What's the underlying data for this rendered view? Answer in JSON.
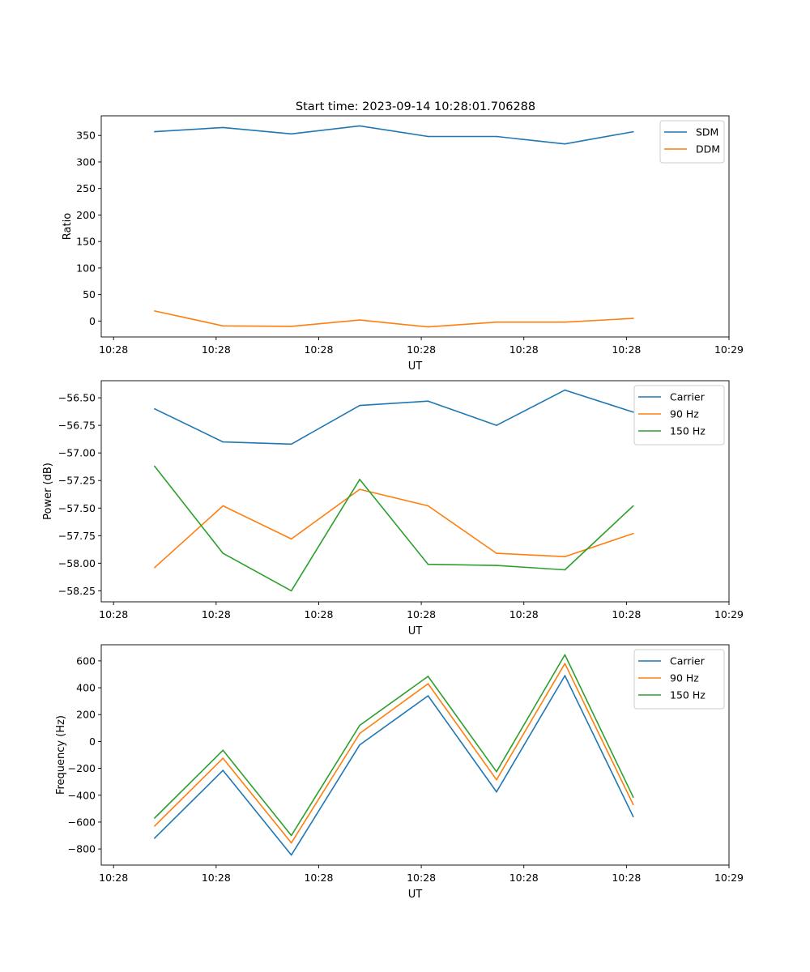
{
  "figure": {
    "title": "Start time: 2023-09-14 10:28:01.706288"
  },
  "chart_data": [
    {
      "type": "line",
      "title": "Start time: 2023-09-14 10:28:01.706288",
      "xlabel": "UT",
      "ylabel": "Ratio",
      "x": [
        1,
        2,
        3,
        4,
        5,
        6,
        7,
        8
      ],
      "xlim": [
        0.22,
        9.4
      ],
      "xticks": [
        0.4,
        1.9,
        3.4,
        4.9,
        6.4,
        7.9,
        9.4
      ],
      "xtick_labels": [
        "10:28",
        "10:28",
        "10:28",
        "10:28",
        "10:28",
        "10:28",
        "10:29"
      ],
      "ylim": [
        -30,
        387
      ],
      "yticks": [
        0,
        50,
        100,
        150,
        200,
        250,
        300,
        350
      ],
      "ytick_labels": [
        "0",
        "50",
        "100",
        "150",
        "200",
        "250",
        "300",
        "350"
      ],
      "legend_position": "top-right",
      "grid": false,
      "series": [
        {
          "name": "SDM",
          "color": "#1f77b4",
          "values": [
            357,
            365,
            353,
            368,
            348,
            348,
            334,
            357
          ]
        },
        {
          "name": "DDM",
          "color": "#ff7f0e",
          "values": [
            19,
            -9,
            -10,
            2,
            -11,
            -2,
            -2,
            5
          ]
        }
      ]
    },
    {
      "type": "line",
      "title": "",
      "xlabel": "UT",
      "ylabel": "Power (dB)",
      "x": [
        1,
        2,
        3,
        4,
        5,
        6,
        7,
        8
      ],
      "xlim": [
        0.22,
        9.4
      ],
      "xticks": [
        0.4,
        1.9,
        3.4,
        4.9,
        6.4,
        7.9,
        9.4
      ],
      "xtick_labels": [
        "10:28",
        "10:28",
        "10:28",
        "10:28",
        "10:28",
        "10:28",
        "10:29"
      ],
      "ylim": [
        -58.35,
        -56.345
      ],
      "yticks": [
        -58.25,
        -58.0,
        -57.75,
        -57.5,
        -57.25,
        -57.0,
        -56.75,
        -56.5
      ],
      "ytick_labels": [
        "−58.25",
        "−58.00",
        "−57.75",
        "−57.50",
        "−57.25",
        "−57.00",
        "−56.75",
        "−56.50"
      ],
      "legend_position": "top-right",
      "grid": false,
      "series": [
        {
          "name": "Carrier",
          "color": "#1f77b4",
          "values": [
            -56.6,
            -56.9,
            -56.92,
            -56.57,
            -56.53,
            -56.75,
            -56.43,
            -56.63
          ]
        },
        {
          "name": "90 Hz",
          "color": "#ff7f0e",
          "values": [
            -58.04,
            -57.48,
            -57.78,
            -57.33,
            -57.48,
            -57.91,
            -57.94,
            -57.73
          ]
        },
        {
          "name": "150 Hz",
          "color": "#2ca02c",
          "values": [
            -57.12,
            -57.91,
            -58.25,
            -57.24,
            -58.01,
            -58.02,
            -58.06,
            -57.48
          ]
        }
      ]
    },
    {
      "type": "line",
      "title": "",
      "xlabel": "UT",
      "ylabel": "Frequency (Hz)",
      "x": [
        1,
        2,
        3,
        4,
        5,
        6,
        7,
        8
      ],
      "xlim": [
        0.22,
        9.4
      ],
      "xticks": [
        0.4,
        1.9,
        3.4,
        4.9,
        6.4,
        7.9,
        9.4
      ],
      "xtick_labels": [
        "10:28",
        "10:28",
        "10:28",
        "10:28",
        "10:28",
        "10:28",
        "10:29"
      ],
      "ylim": [
        -920,
        720
      ],
      "yticks": [
        -800,
        -600,
        -400,
        -200,
        0,
        200,
        400,
        600
      ],
      "ytick_labels": [
        "−800",
        "−600",
        "−400",
        "−200",
        "0",
        "200",
        "400",
        "600"
      ],
      "legend_position": "top-right",
      "grid": false,
      "series": [
        {
          "name": "Carrier",
          "color": "#1f77b4",
          "values": [
            -720,
            -215,
            -845,
            -25,
            340,
            -375,
            490,
            -560
          ]
        },
        {
          "name": "90 Hz",
          "color": "#ff7f0e",
          "values": [
            -630,
            -125,
            -755,
            60,
            430,
            -285,
            580,
            -470
          ]
        },
        {
          "name": "150 Hz",
          "color": "#2ca02c",
          "values": [
            -570,
            -65,
            -700,
            120,
            485,
            -225,
            645,
            -415
          ]
        }
      ]
    }
  ]
}
